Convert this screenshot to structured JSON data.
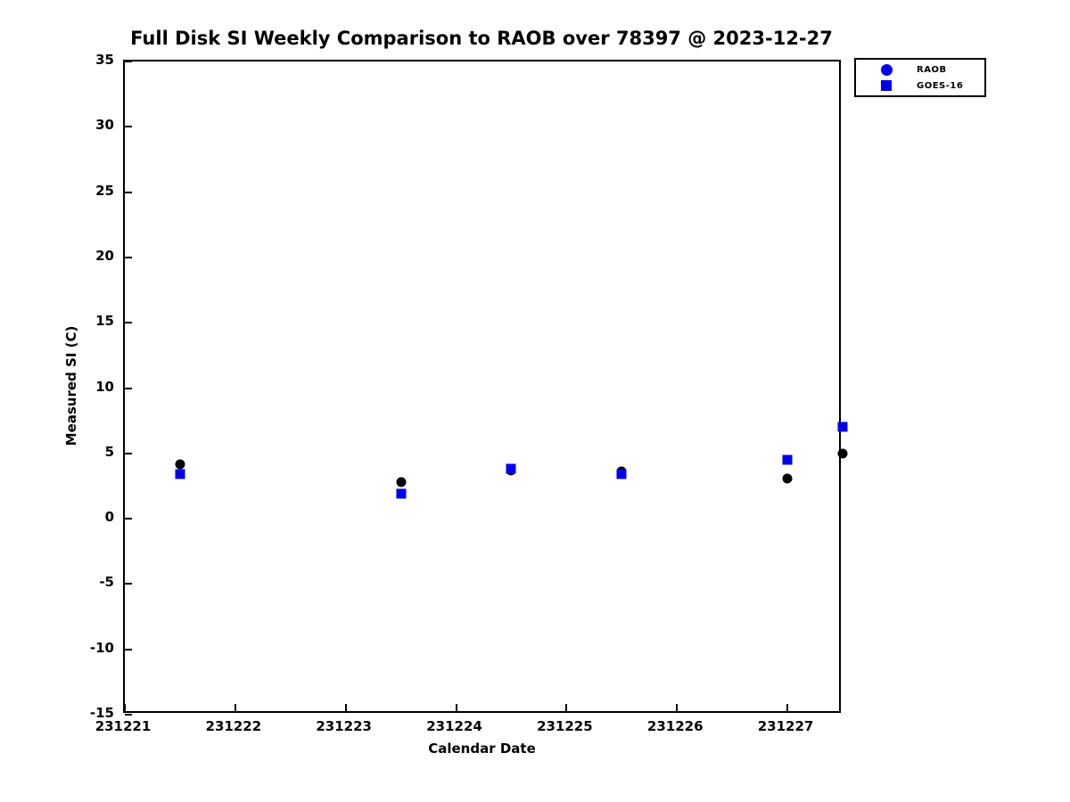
{
  "title": "Full Disk SI Weekly Comparison to RAOB over 78397 @ 2023-12-27",
  "chart_data": {
    "type": "scatter",
    "title": "Full Disk SI Weekly Comparison to RAOB over 78397 @ 2023-12-27",
    "xlabel": "Calendar Date",
    "ylabel": "Measured SI (C)",
    "xlim": [
      231221,
      231227.5
    ],
    "ylim": [
      -15,
      35
    ],
    "x_ticks": [
      231221,
      231222,
      231223,
      231224,
      231225,
      231226,
      231227
    ],
    "y_ticks": [
      35,
      30,
      25,
      20,
      15,
      10,
      5,
      0,
      -5,
      -10,
      -15
    ],
    "grid": false,
    "legend_position": "top-right-outside",
    "series": [
      {
        "name": "RAOB",
        "marker": "circle",
        "color": "#000000",
        "legend_color": "#0000ee",
        "points": [
          {
            "x": 231221.5,
            "y": 4.2
          },
          {
            "x": 231223.5,
            "y": 2.8
          },
          {
            "x": 231224.5,
            "y": 3.7
          },
          {
            "x": 231225.5,
            "y": 3.6
          },
          {
            "x": 231227.0,
            "y": 3.1
          },
          {
            "x": 231227.5,
            "y": 5.0
          }
        ]
      },
      {
        "name": "GOES-16",
        "marker": "square",
        "color": "#0000ee",
        "legend_color": "#0000ee",
        "points": [
          {
            "x": 231221.5,
            "y": 3.4
          },
          {
            "x": 231223.5,
            "y": 1.9
          },
          {
            "x": 231224.5,
            "y": 3.8
          },
          {
            "x": 231225.5,
            "y": 3.4
          },
          {
            "x": 231227.0,
            "y": 4.5
          },
          {
            "x": 231227.5,
            "y": 7.0
          }
        ]
      }
    ]
  },
  "legend": {
    "items": [
      {
        "label": "RAOB"
      },
      {
        "label": "GOES-16"
      }
    ]
  }
}
